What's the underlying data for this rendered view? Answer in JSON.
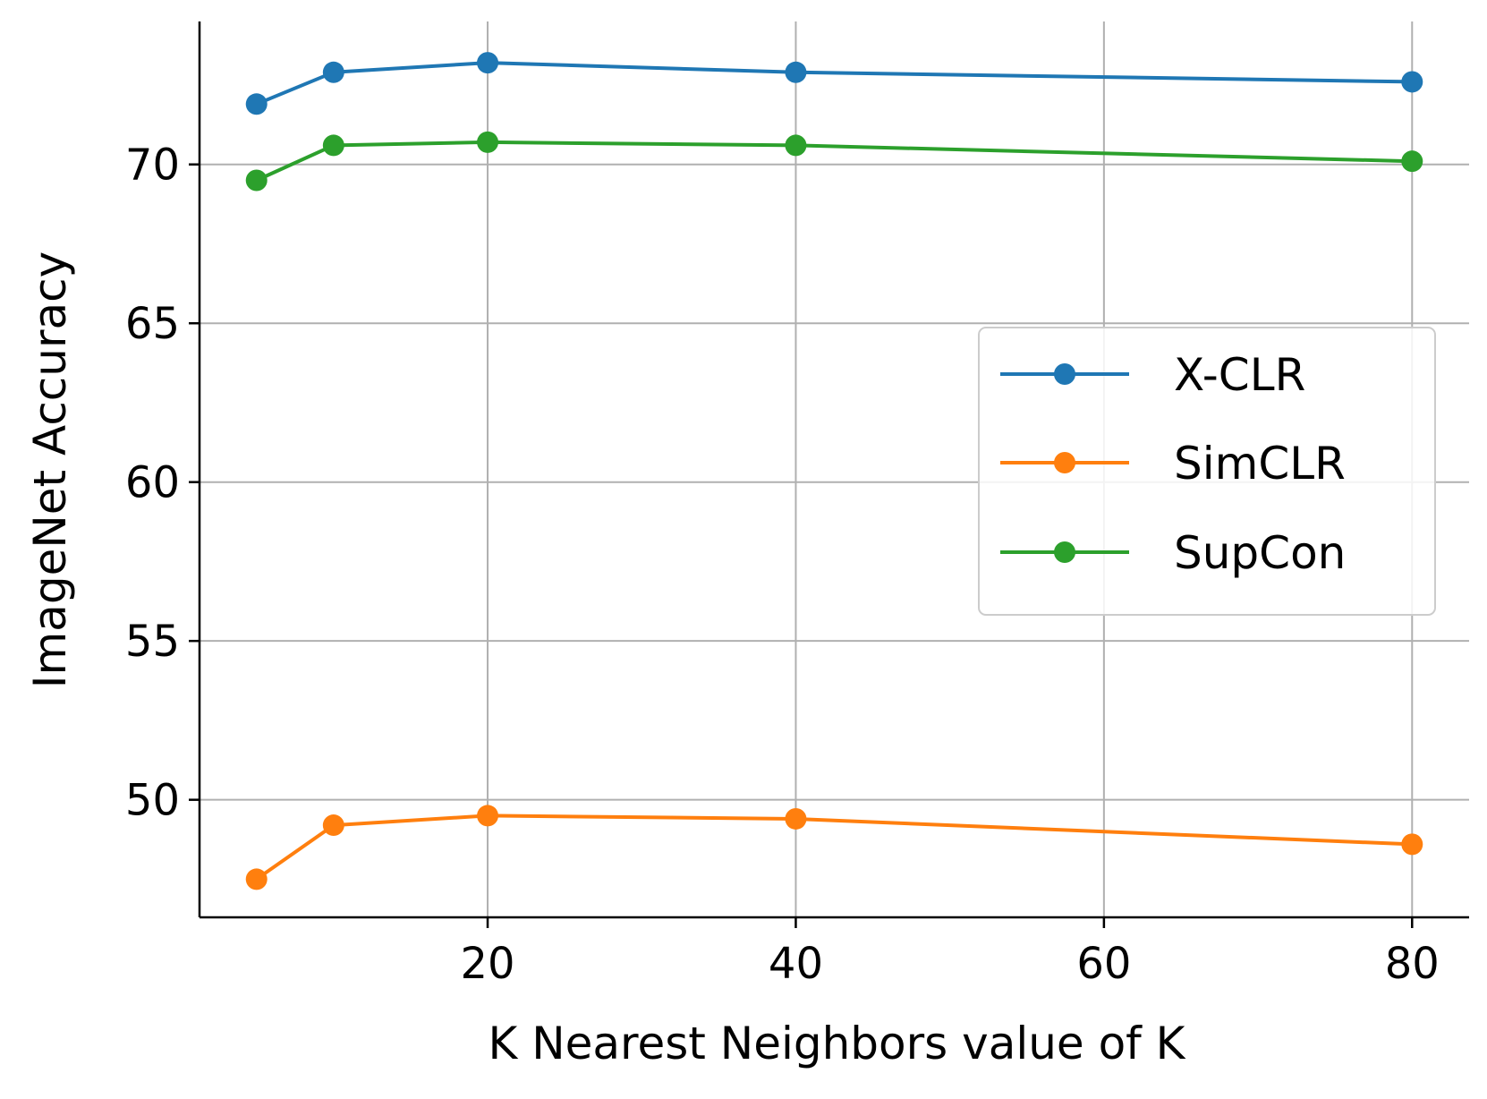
{
  "chart_data": {
    "type": "line",
    "title": "",
    "xlabel": "K Nearest Neighbors value of K",
    "ylabel": "ImageNet Accuracy",
    "x": [
      5,
      10,
      20,
      40,
      80
    ],
    "xlim": [
      1.3,
      83.7
    ],
    "ylim": [
      46.3,
      74.5
    ],
    "xticks": [
      20,
      40,
      60,
      80
    ],
    "yticks": [
      50,
      55,
      60,
      65,
      70
    ],
    "grid": true,
    "legend_position": "center-right",
    "series": [
      {
        "name": "X-CLR",
        "color": "#1f77b4",
        "values": [
          71.9,
          72.9,
          73.2,
          72.9,
          72.6
        ]
      },
      {
        "name": "SimCLR",
        "color": "#ff7f0e",
        "values": [
          47.5,
          49.2,
          49.5,
          49.4,
          48.6
        ]
      },
      {
        "name": "SupCon",
        "color": "#2ca02c",
        "values": [
          69.5,
          70.6,
          70.7,
          70.6,
          70.1
        ]
      }
    ]
  }
}
